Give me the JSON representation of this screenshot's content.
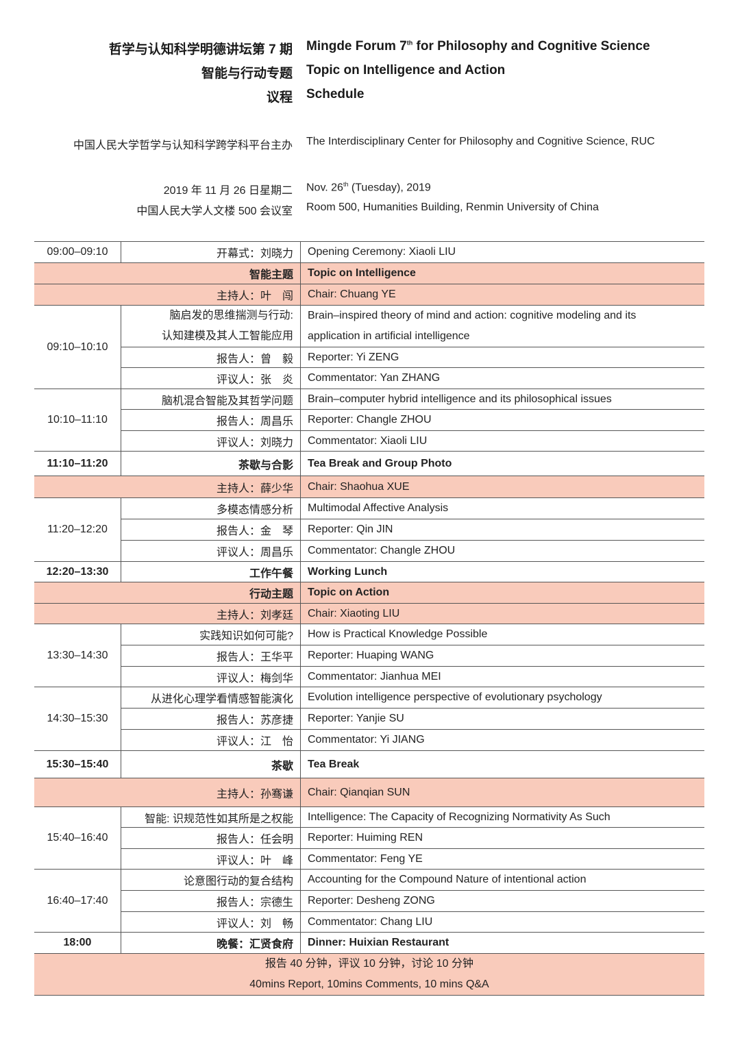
{
  "header": {
    "title_zh": "哲学与认知科学明德讲坛第 7 期",
    "title_en_pre": "Mingde Forum 7",
    "title_en_sup": "th",
    "title_en_post": " for Philosophy and Cognitive Science",
    "topic_zh": "智能与行动专题",
    "topic_en": "Topic on Intelligence and Action",
    "schedule_zh": "议程",
    "schedule_en": "Schedule",
    "host_zh": "中国人民大学哲学与认知科学跨学科平台主办",
    "host_en": "The Interdisciplinary Center for Philosophy and Cognitive Science, RUC",
    "date_zh": "2019 年 11 月 26 日星期二",
    "date_en_pre": "Nov. 26",
    "date_en_sup": "th",
    "date_en_post": " (Tuesday), 2019",
    "venue_zh": "中国人民大学人文楼 500 会议室",
    "venue_en": "Room 500, Humanities Building, Renmin University of China"
  },
  "colors": {
    "highlight": "#f9cbbb",
    "rule": "#555555"
  },
  "schedule": [
    {
      "type": "row",
      "time": "09:00–09:10",
      "zh": "开幕式：刘晓力",
      "en": "Opening Ceremony: Xiaoli LIU"
    },
    {
      "type": "pink",
      "bold": true,
      "zh": "智能主题",
      "en": "Topic on Intelligence"
    },
    {
      "type": "pink",
      "zh": "主持人：叶　闯",
      "en": "Chair: Chuang YE"
    },
    {
      "type": "session",
      "time": "09:10–10:10",
      "rows": [
        {
          "zh": "脑启发的思维揣测与行动:\n认知建模及其人工智能应用",
          "en": "Brain–inspired theory of mind and action: cognitive modeling and its\napplication in artificial intelligence"
        },
        {
          "zh": "报告人：曾　毅",
          "en": "Reporter: Yi ZENG"
        },
        {
          "zh": "评议人：张　炎",
          "en": "Commentator: Yan ZHANG"
        }
      ]
    },
    {
      "type": "session",
      "time": "10:10–11:10",
      "rows": [
        {
          "zh": "脑机混合智能及其哲学问题",
          "en": "Brain–computer hybrid intelligence and its philosophical issues"
        },
        {
          "zh": "报告人：周昌乐",
          "en": "Reporter: Changle ZHOU"
        },
        {
          "zh": "评议人：刘晓力",
          "en": "Commentator: Xiaoli LIU"
        }
      ]
    },
    {
      "type": "row",
      "bold": true,
      "time": "11:10–11:20",
      "zh": "茶歇与合影",
      "en": "Tea Break and Group Photo"
    },
    {
      "type": "pink",
      "zh": "主持人：薛少华",
      "en": "Chair: Shaohua XUE"
    },
    {
      "type": "session",
      "time": "11:20–12:20",
      "rows": [
        {
          "zh": "多模态情感分析",
          "en": "Multimodal Affective Analysis"
        },
        {
          "zh": "报告人：金　琴",
          "en": "Reporter: Qin JIN"
        },
        {
          "zh": "评议人：周昌乐",
          "en": "Commentator: Changle ZHOU"
        }
      ]
    },
    {
      "type": "row",
      "bold": true,
      "time": "12:20–13:30",
      "zh": "工作午餐",
      "en": "Working Lunch"
    },
    {
      "type": "pink",
      "bold": true,
      "zh": "行动主题",
      "en": "Topic on Action"
    },
    {
      "type": "pink",
      "zh": "主持人：刘孝廷",
      "en": "Chair: Xiaoting LIU"
    },
    {
      "type": "session",
      "time": "13:30–14:30",
      "rows": [
        {
          "zh": "实践知识如何可能?",
          "en": "How is Practical Knowledge Possible"
        },
        {
          "zh": "报告人：王华平",
          "en": "Reporter: Huaping WANG"
        },
        {
          "zh": "评议人：梅剑华",
          "en": "Commentator: Jianhua MEI"
        }
      ]
    },
    {
      "type": "session",
      "time": "14:30–15:30",
      "rows": [
        {
          "zh": "从进化心理学看情感智能演化",
          "en": "Evolution intelligence perspective of evolutionary psychology"
        },
        {
          "zh": "报告人：苏彦捷",
          "en": "Reporter: Yanjie SU"
        },
        {
          "zh": "评议人：江　怡",
          "en": "Commentator: Yi JIANG"
        }
      ]
    },
    {
      "type": "row",
      "bold": true,
      "time": "15:30–15:40",
      "zh": "茶歇",
      "en": "Tea Break"
    },
    {
      "type": "pink",
      "zh": "主持人：孙骞谦",
      "en": "Chair: Qianqian SUN"
    },
    {
      "type": "session",
      "time": "15:40–16:40",
      "rows": [
        {
          "zh": "智能: 识规范性如其所是之权能",
          "en": "Intelligence: The Capacity of Recognizing Normativity As Such"
        },
        {
          "zh": "报告人：任会明",
          "en": "Reporter: Huiming REN"
        },
        {
          "zh": "评议人：叶　峰",
          "en": "Commentator: Feng YE"
        }
      ]
    },
    {
      "type": "session",
      "time": "16:40–17:40",
      "rows": [
        {
          "zh": "论意图行动的复合结构",
          "en": "Accounting for the Compound Nature of intentional action"
        },
        {
          "zh": "报告人：宗德生",
          "en": "Reporter: Desheng ZONG"
        },
        {
          "zh": "评议人：刘　畅",
          "en": "Commentator: Chang LIU"
        }
      ]
    },
    {
      "type": "row",
      "bold": true,
      "time": "18:00",
      "zh": "晚餐：汇贤食府",
      "en": "Dinner: Huixian Restaurant"
    }
  ],
  "footer": {
    "zh": "报告 40 分钟，评议 10 分钟，讨论 10 分钟",
    "en": "40mins Report, 10mins Comments, 10 mins Q&A"
  }
}
